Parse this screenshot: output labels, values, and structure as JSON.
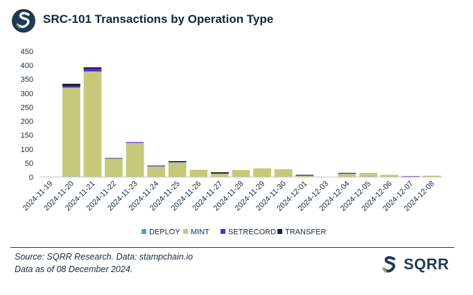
{
  "title": "SRC-101 Transactions by Operation Type",
  "brand_name": "SQRR",
  "notes": {
    "source": "Source: SQRR Research. Data: stampchain.io",
    "asof": "Data as of 08 December 2024."
  },
  "colors": {
    "DEPLOY": "#5b9bd5",
    "MINT": "#c6c97a",
    "SETRECORD": "#5b2bd8",
    "TRANSFER": "#14202e",
    "brand": "#1f3a55",
    "brand_accent": "#9aa37a"
  },
  "chart_data": {
    "type": "bar",
    "stacked": true,
    "title": "SRC-101 Transactions by Operation Type",
    "xlabel": "",
    "ylabel": "",
    "ylim": [
      0,
      450
    ],
    "yticks": [
      0,
      50,
      100,
      150,
      200,
      250,
      300,
      350,
      400,
      450
    ],
    "grid": false,
    "legend": "bottom",
    "categories": [
      "2024-11-19",
      "2024-11-20",
      "2024-11-21",
      "2024-11-22",
      "2024-11-23",
      "2024-11-24",
      "2024-11-25",
      "2024-11-26",
      "2024-11-27",
      "2024-11-28",
      "2024-11-29",
      "2024-11-30",
      "2024-12-01",
      "2024-12-03",
      "2024-12-04",
      "2024-12-05",
      "2024-12-06",
      "2024-12-07",
      "2024-12-08"
    ],
    "series": [
      {
        "name": "DEPLOY",
        "values": [
          0,
          2,
          0,
          0,
          0,
          0,
          0,
          0,
          0,
          0,
          0,
          0,
          0,
          0,
          0,
          0,
          0,
          0,
          0
        ]
      },
      {
        "name": "MINT",
        "values": [
          0,
          318,
          378,
          66,
          122,
          38,
          52,
          26,
          12,
          25,
          31,
          28,
          5,
          0,
          12,
          15,
          8,
          1,
          5
        ]
      },
      {
        "name": "SETRECORD",
        "values": [
          0,
          5,
          10,
          1,
          3,
          2,
          2,
          0,
          0,
          0,
          0,
          0,
          1,
          0,
          1,
          0,
          0,
          2,
          0
        ]
      },
      {
        "name": "TRANSFER",
        "values": [
          0,
          9,
          5,
          1,
          0,
          1,
          3,
          0,
          5,
          0,
          0,
          0,
          2,
          0,
          2,
          0,
          0,
          0,
          0
        ]
      }
    ]
  }
}
